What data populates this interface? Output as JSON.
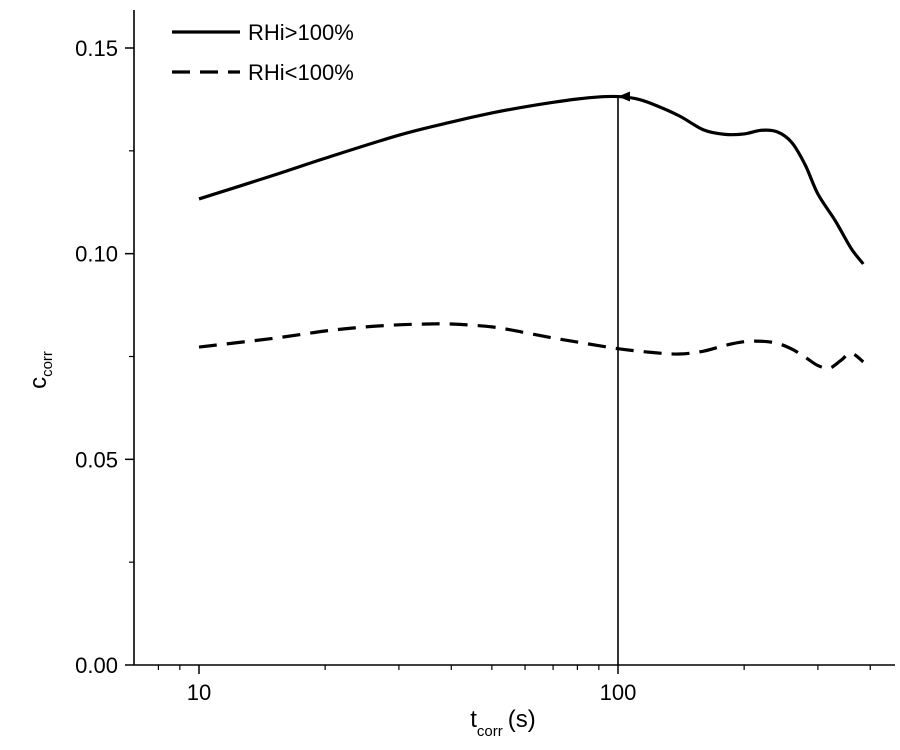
{
  "chart_data": {
    "type": "line",
    "title": "",
    "xlabel": {
      "main": "t",
      "sub": "corr",
      "unit": "(s)"
    },
    "ylabel": {
      "main": "c",
      "sub": "corr"
    },
    "x_scale": "log",
    "xlim": [
      7.2,
      480
    ],
    "ylim": [
      0.0,
      0.16
    ],
    "x_ticks": [
      10,
      100
    ],
    "x_tick_labels": [
      "10",
      "100"
    ],
    "y_ticks": [
      0.0,
      0.05,
      0.1,
      0.15
    ],
    "y_tick_labels": [
      "0.00",
      "0.05",
      "0.10",
      "0.15"
    ],
    "grid": false,
    "legend_position": "top-left",
    "series": [
      {
        "name": "RHi>100%",
        "style": "solid",
        "color": "#000000",
        "x": [
          10,
          15,
          20,
          30,
          40,
          50,
          60,
          70,
          80,
          90,
          100,
          110,
          120,
          140,
          160,
          180,
          200,
          220,
          240,
          260,
          280,
          300,
          330,
          360,
          385
        ],
        "y": [
          0.1133,
          0.119,
          0.1232,
          0.1288,
          0.132,
          0.1342,
          0.1357,
          0.1368,
          0.1376,
          0.1381,
          0.1382,
          0.1377,
          0.1365,
          0.1335,
          0.1301,
          0.129,
          0.1291,
          0.13,
          0.1296,
          0.127,
          0.1215,
          0.1145,
          0.108,
          0.1013,
          0.0975
        ]
      },
      {
        "name": "RHi<100%",
        "style": "dashed",
        "color": "#000000",
        "x": [
          10,
          15,
          20,
          25,
          30,
          35,
          40,
          50,
          60,
          70,
          80,
          100,
          120,
          140,
          160,
          180,
          200,
          220,
          240,
          260,
          280,
          300,
          320,
          340,
          360,
          385
        ],
        "y": [
          0.0773,
          0.0794,
          0.0812,
          0.0822,
          0.0827,
          0.0829,
          0.0829,
          0.0822,
          0.0808,
          0.0795,
          0.0785,
          0.0769,
          0.076,
          0.0756,
          0.0763,
          0.0777,
          0.0786,
          0.0787,
          0.0782,
          0.0768,
          0.0748,
          0.0728,
          0.0722,
          0.074,
          0.0758,
          0.0737
        ]
      }
    ],
    "annotations": [
      {
        "type": "arrow",
        "x": 100,
        "y_from": 0.0,
        "y_to": 0.1382
      }
    ]
  }
}
